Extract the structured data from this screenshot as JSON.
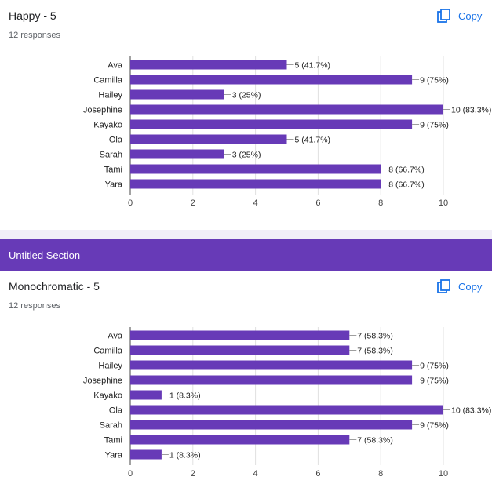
{
  "section": {
    "title": "Untitled Section",
    "color": "#673ab7"
  },
  "colors": {
    "bar": "#673ab7",
    "link": "#1a73e8",
    "axis": "#444444",
    "grid": "#e0e0e0"
  },
  "cards": [
    {
      "title": "Happy - 5",
      "responses": "12 responses",
      "copy_label": "Copy",
      "copy_icon": "copy-icon"
    },
    {
      "title": "Monochromatic - 5",
      "responses": "12 responses",
      "copy_label": "Copy",
      "copy_icon": "copy-icon"
    }
  ],
  "chart_data": [
    {
      "type": "bar",
      "orientation": "horizontal",
      "categories": [
        "Ava",
        "Camilla",
        "Hailey",
        "Josephine",
        "Kayako",
        "Ola",
        "Sarah",
        "Tami",
        "Yara"
      ],
      "values": [
        5,
        9,
        3,
        10,
        9,
        5,
        3,
        8,
        8
      ],
      "data_labels": [
        "5 (41.7%)",
        "9 (75%)",
        "3 (25%)",
        "10 (83.3%)",
        "9 (75%)",
        "5 (41.7%)",
        "3 (25%)",
        "8 (66.7%)",
        "8 (66.7%)"
      ],
      "xlim": [
        0,
        10
      ],
      "xticks": [
        0,
        2,
        4,
        6,
        8,
        10
      ],
      "grid": true,
      "title": "",
      "xlabel": "",
      "ylabel": ""
    },
    {
      "type": "bar",
      "orientation": "horizontal",
      "categories": [
        "Ava",
        "Camilla",
        "Hailey",
        "Josephine",
        "Kayako",
        "Ola",
        "Sarah",
        "Tami",
        "Yara"
      ],
      "values": [
        7,
        7,
        9,
        9,
        1,
        10,
        9,
        7,
        1
      ],
      "data_labels": [
        "7 (58.3%)",
        "7 (58.3%)",
        "9 (75%)",
        "9 (75%)",
        "1 (8.3%)",
        "10 (83.3%)",
        "9 (75%)",
        "7 (58.3%)",
        "1 (8.3%)"
      ],
      "xlim": [
        0,
        10
      ],
      "xticks": [
        0,
        2,
        4,
        6,
        8,
        10
      ],
      "grid": true,
      "title": "",
      "xlabel": "",
      "ylabel": ""
    }
  ]
}
